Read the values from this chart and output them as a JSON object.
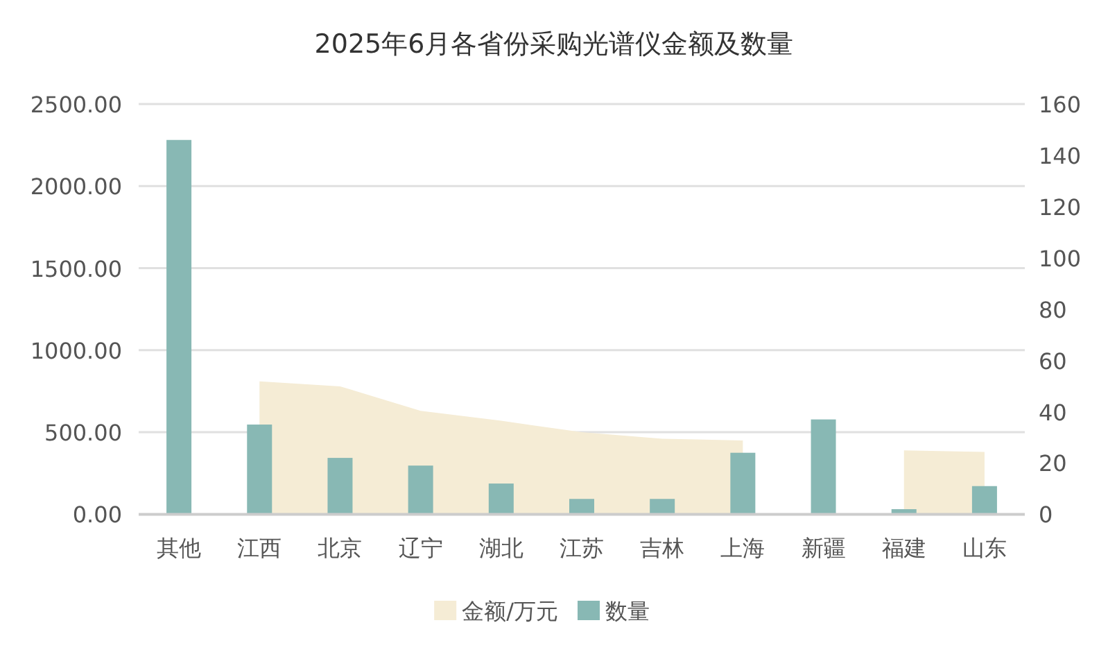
{
  "chart_data": {
    "type": "bar",
    "title": "2025年6月各省份采购光谱仪金额及数量",
    "categories": [
      "其他",
      "江西",
      "北京",
      "辽宁",
      "湖北",
      "江苏",
      "吉林",
      "上海",
      "新疆",
      "福建",
      "山东"
    ],
    "series": [
      {
        "name": "金额/万元",
        "type": "area",
        "color": "#f5ecd5",
        "values": [
          null,
          810,
          780,
          630,
          570,
          500,
          460,
          450,
          null,
          390,
          380
        ]
      },
      {
        "name": "数量",
        "axis": "y2",
        "color": "#88b8b4",
        "values": [
          146,
          35,
          22,
          19,
          12,
          6,
          6,
          24,
          37,
          2,
          11
        ]
      }
    ],
    "ylim": [
      0,
      2500
    ],
    "yticks": [
      {
        "value": 0,
        "label": "0.00"
      },
      {
        "value": 500,
        "label": "500.00"
      },
      {
        "value": 1000,
        "label": "1000.00"
      },
      {
        "value": 1500,
        "label": "1500.00"
      },
      {
        "value": 2000,
        "label": "2000.00"
      },
      {
        "value": 2500,
        "label": "2500.00"
      }
    ],
    "y2lim": [
      0,
      160
    ],
    "y2ticks": [
      0,
      20,
      40,
      60,
      80,
      100,
      120,
      140,
      160
    ],
    "grid": "y",
    "legend": "bottom"
  }
}
